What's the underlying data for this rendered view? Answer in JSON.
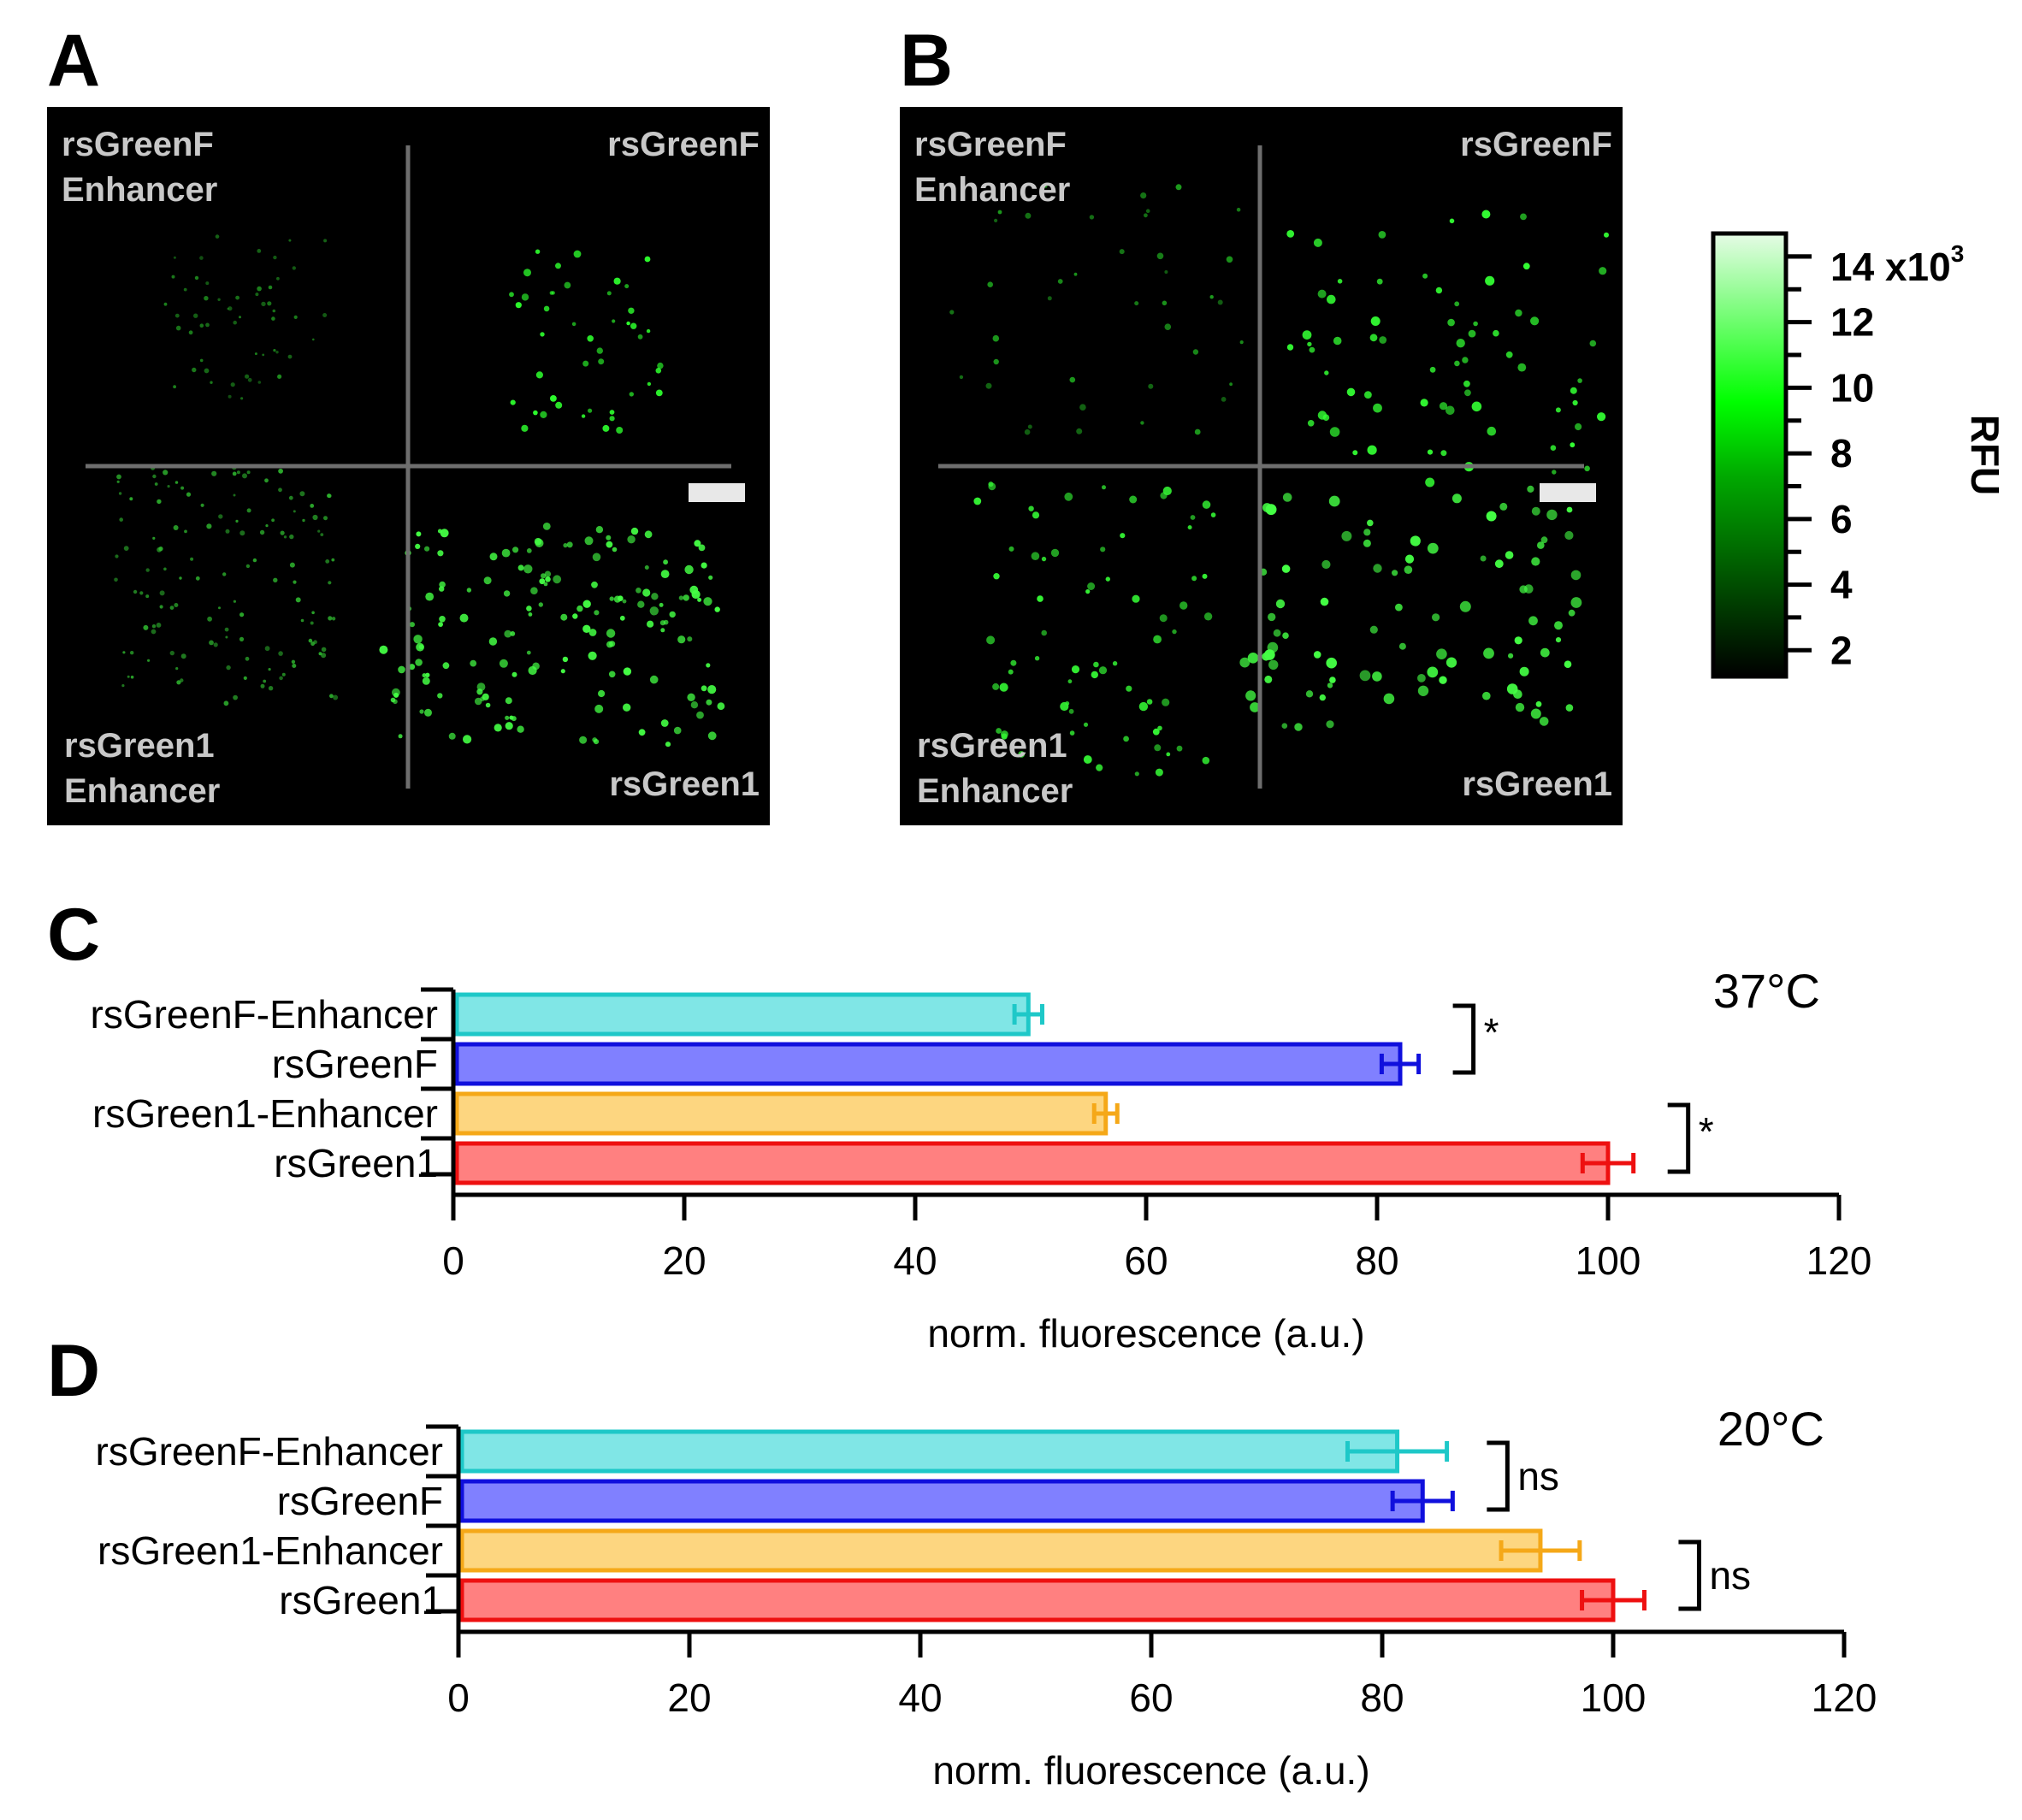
{
  "panels": {
    "A": {
      "letter": "A",
      "labels": {
        "top_left": [
          "rsGreenF",
          "Enhancer"
        ],
        "top_right": "rsGreenF",
        "bottom_left": [
          "rsGreen1",
          "Enhancer"
        ],
        "bottom_right": "rsGreen1"
      }
    },
    "B": {
      "letter": "B",
      "labels": {
        "top_left": [
          "rsGreenF",
          "Enhancer"
        ],
        "top_right": "rsGreenF",
        "bottom_left": [
          "rsGreen1",
          "Enhancer"
        ],
        "bottom_right": "rsGreen1"
      }
    }
  },
  "colorbar": {
    "axis_title": "RFU",
    "multiplier_base": "14 x10",
    "multiplier_exp": "3",
    "tick_labels": [
      "2",
      "4",
      "6",
      "8",
      "10",
      "12"
    ],
    "range": [
      1.2,
      14.7
    ],
    "colors": {
      "low": "#000000",
      "mid": "#00ff00",
      "high": "#e6fbe6"
    }
  },
  "colors": {
    "rsGreenF-Enhancer": {
      "fill": "#80e6e6",
      "stroke": "#1ec8c8"
    },
    "rsGreenF": {
      "fill": "#8080ff",
      "stroke": "#1010dd"
    },
    "rsGreen1-Enhancer": {
      "fill": "#fdd680",
      "stroke": "#f5a818"
    },
    "rsGreen1": {
      "fill": "#ff8080",
      "stroke": "#ee1010"
    }
  },
  "chart_data": [
    {
      "panel": "C",
      "type": "bar",
      "orientation": "horizontal",
      "title": "37°C",
      "xlabel": "norm. fluorescence (a.u.)",
      "xlim": [
        0,
        120
      ],
      "xticks": [
        "0",
        "20",
        "40",
        "60",
        "80",
        "100",
        "120"
      ],
      "categories": [
        "rsGreenF-Enhancer",
        "rsGreenF",
        "rsGreen1-Enhancer",
        "rsGreen1"
      ],
      "values": [
        49.8,
        82.0,
        56.5,
        100.0
      ],
      "errors": [
        1.2,
        1.6,
        1.0,
        2.2
      ],
      "significance": [
        {
          "pair": [
            "rsGreenF-Enhancer",
            "rsGreenF"
          ],
          "label": "*"
        },
        {
          "pair": [
            "rsGreen1-Enhancer",
            "rsGreen1"
          ],
          "label": "*"
        }
      ]
    },
    {
      "panel": "D",
      "type": "bar",
      "orientation": "horizontal",
      "title": "20°C",
      "xlabel": "norm. fluorescence (a.u.)",
      "xlim": [
        0,
        120
      ],
      "xticks": [
        "0",
        "20",
        "40",
        "60",
        "80",
        "100",
        "120"
      ],
      "categories": [
        "rsGreenF-Enhancer",
        "rsGreenF",
        "rsGreen1-Enhancer",
        "rsGreen1"
      ],
      "values": [
        81.3,
        83.5,
        93.7,
        100.0
      ],
      "errors": [
        4.3,
        2.6,
        3.4,
        2.7
      ],
      "significance": [
        {
          "pair": [
            "rsGreenF-Enhancer",
            "rsGreenF"
          ],
          "label": "ns"
        },
        {
          "pair": [
            "rsGreen1-Enhancer",
            "rsGreen1"
          ],
          "label": "ns"
        }
      ]
    }
  ]
}
